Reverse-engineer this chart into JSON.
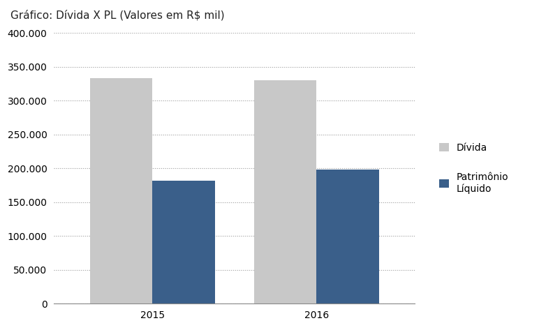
{
  "title": "Gráfico: Dívida X PL (Valores em R$ mil)",
  "years": [
    "2015",
    "2016"
  ],
  "divida": [
    333000,
    330000
  ],
  "patrimonio": [
    182000,
    198000
  ],
  "bar_color_divida": "#c8c8c8",
  "bar_color_patrimonio": "#3a5f8a",
  "legend_labels": [
    "Dívida",
    "Patrimônio\nLíquido"
  ],
  "ylim": [
    0,
    400000
  ],
  "yticks": [
    0,
    50000,
    100000,
    150000,
    200000,
    250000,
    300000,
    350000,
    400000
  ],
  "background_color": "#ffffff",
  "grid_color": "#999999",
  "title_fontsize": 11,
  "tick_fontsize": 10,
  "legend_fontsize": 10,
  "bar_width": 0.38,
  "figure_width": 7.72,
  "figure_height": 4.73
}
